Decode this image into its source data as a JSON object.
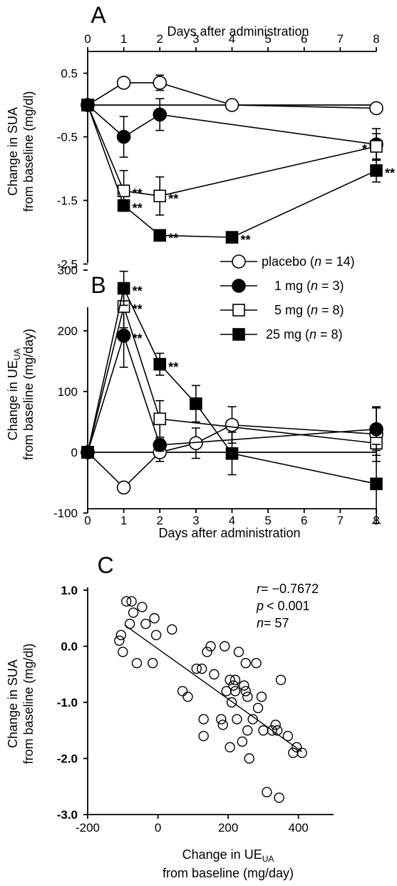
{
  "chart_data": [
    {
      "panel_label": "A",
      "type": "line",
      "xlabel": "Days after administration",
      "ylabel_lines": [
        "Change in SUA",
        "from baseline (mg/dl)"
      ],
      "x_ticks": [
        0,
        1,
        2,
        3,
        4,
        5,
        6,
        7,
        8
      ],
      "y_ticks": [
        0.5,
        -0.5,
        -1.5,
        -2.5
      ],
      "ylim": [
        -2.5,
        0.7
      ],
      "baseline_at_zero": true,
      "series": [
        {
          "key": "placebo",
          "marker": "open-circle",
          "x": [
            0,
            1,
            2,
            4,
            8
          ],
          "y": [
            0,
            0.35,
            0.35,
            0,
            -0.05
          ],
          "err": [
            0,
            0.08,
            0.12,
            0,
            0.08
          ],
          "sig": []
        },
        {
          "key": "1mg",
          "marker": "filled-circle",
          "x": [
            0,
            1,
            2,
            8
          ],
          "y": [
            0,
            -0.5,
            -0.15,
            -0.62
          ],
          "err": [
            0,
            0.32,
            0.25,
            0.25
          ],
          "sig": []
        },
        {
          "key": "5mg",
          "marker": "open-square",
          "x": [
            0,
            1,
            2,
            8
          ],
          "y": [
            0,
            -1.35,
            -1.43,
            -0.65
          ],
          "err": [
            0,
            0.32,
            0.3,
            0.2
          ],
          "sig": [
            {
              "x": 1,
              "text": "**"
            },
            {
              "x": 2,
              "text": "**"
            },
            {
              "x": 8,
              "text": "*",
              "side": "left"
            }
          ]
        },
        {
          "key": "25mg",
          "marker": "filled-square",
          "x": [
            0,
            1,
            2,
            4,
            8
          ],
          "y": [
            0,
            -1.58,
            -2.05,
            -2.08,
            -1.03
          ],
          "err": [
            0,
            0.07,
            0.07,
            0.07,
            0.18
          ],
          "sig": [
            {
              "x": 1,
              "text": "**"
            },
            {
              "x": 2,
              "text": "**"
            },
            {
              "x": 4,
              "text": "**"
            },
            {
              "x": 8,
              "text": "**"
            }
          ]
        }
      ]
    },
    {
      "panel_label": "B",
      "type": "line",
      "xlabel": "Days after administration",
      "ylabel_line1": "Change in UE",
      "ylabel_sub": "UA",
      "ylabel_line2": "from baseline (mg/day)",
      "x_ticks": [
        0,
        1,
        2,
        3,
        4,
        5,
        6,
        7,
        8
      ],
      "y_ticks": [
        300,
        200,
        100,
        0,
        -100
      ],
      "ylim": [
        -115,
        320
      ],
      "baseline_at_zero": true,
      "series": [
        {
          "key": "placebo",
          "marker": "open-circle",
          "x": [
            0,
            1,
            2,
            3,
            4,
            8
          ],
          "y": [
            0,
            -58,
            0,
            15,
            45,
            30
          ],
          "err": [
            0,
            8,
            15,
            25,
            30,
            45
          ],
          "sig": []
        },
        {
          "key": "1mg",
          "marker": "filled-circle",
          "x": [
            0,
            1,
            2,
            8
          ],
          "y": [
            0,
            192,
            12,
            38
          ],
          "err": [
            0,
            52,
            10,
            35
          ],
          "sig": [
            {
              "x": 1,
              "text": "**"
            }
          ]
        },
        {
          "key": "5mg",
          "marker": "open-square",
          "x": [
            0,
            1,
            2,
            8
          ],
          "y": [
            0,
            240,
            55,
            15
          ],
          "err": [
            0,
            35,
            30,
            20
          ],
          "sig": [
            {
              "x": 1,
              "text": "**"
            }
          ]
        },
        {
          "key": "25mg",
          "marker": "filled-square",
          "x": [
            0,
            1,
            2,
            3,
            4,
            8
          ],
          "y": [
            0,
            270,
            145,
            80,
            -2,
            -52
          ],
          "err": [
            0,
            28,
            18,
            30,
            35,
            65
          ],
          "sig": [
            {
              "x": 1,
              "text": "**"
            },
            {
              "x": 2,
              "text": "**"
            }
          ]
        }
      ]
    },
    {
      "panel_label": "C",
      "type": "scatter",
      "xlabel_line1": "Change in UE",
      "xlabel_sub": "UA",
      "xlabel_line2": "from baseline (mg/day)",
      "ylabel_lines": [
        "Change in SUA",
        "from baseline (mg/dl)"
      ],
      "x_ticks": [
        -200,
        0,
        200,
        400
      ],
      "y_ticks": [
        1.0,
        0.0,
        -1.0,
        -2.0,
        -3.0
      ],
      "y_tick_labels": [
        "1.0",
        "0.0",
        "-1.0",
        "-2.0",
        "-3.0"
      ],
      "xlim": [
        -200,
        500
      ],
      "ylim": [
        -3.0,
        1.0
      ],
      "stats": {
        "r": "= −0.7672",
        "p": "< 0.001",
        "n": "= 57"
      },
      "fit_line": {
        "x": [
          -95,
          410
        ],
        "y": [
          0.38,
          -1.88
        ]
      },
      "points": [
        [
          -105,
          0.2
        ],
        [
          -110,
          0.1
        ],
        [
          -100,
          -0.1
        ],
        [
          -90,
          0.8
        ],
        [
          -75,
          0.8
        ],
        [
          -80,
          0.4
        ],
        [
          -70,
          0.6
        ],
        [
          -60,
          -0.3
        ],
        [
          -45,
          0.7
        ],
        [
          -35,
          0.4
        ],
        [
          -15,
          -0.3
        ],
        [
          -10,
          0.5
        ],
        [
          -5,
          0.2
        ],
        [
          40,
          0.3
        ],
        [
          70,
          -0.8
        ],
        [
          85,
          -0.9
        ],
        [
          110,
          -0.4
        ],
        [
          125,
          -0.4
        ],
        [
          130,
          -1.3
        ],
        [
          140,
          -0.1
        ],
        [
          150,
          0.0
        ],
        [
          130,
          -1.6
        ],
        [
          160,
          -0.5
        ],
        [
          180,
          -1.3
        ],
        [
          185,
          -1.4
        ],
        [
          190,
          0.0
        ],
        [
          195,
          -0.8
        ],
        [
          205,
          -0.6
        ],
        [
          210,
          -1.0
        ],
        [
          205,
          -1.8
        ],
        [
          220,
          -0.6
        ],
        [
          220,
          -0.8
        ],
        [
          225,
          -1.3
        ],
        [
          230,
          -0.1
        ],
        [
          240,
          -1.7
        ],
        [
          245,
          -0.7
        ],
        [
          250,
          -0.8
        ],
        [
          250,
          -0.3
        ],
        [
          255,
          -0.9
        ],
        [
          255,
          -1.5
        ],
        [
          260,
          -2.0
        ],
        [
          270,
          -1.3
        ],
        [
          280,
          -0.3
        ],
        [
          285,
          -1.1
        ],
        [
          295,
          -0.9
        ],
        [
          300,
          -1.5
        ],
        [
          310,
          -2.6
        ],
        [
          325,
          -1.5
        ],
        [
          335,
          -1.4
        ],
        [
          340,
          -1.5
        ],
        [
          350,
          -0.6
        ],
        [
          345,
          -2.7
        ],
        [
          370,
          -1.6
        ],
        [
          385,
          -1.9
        ],
        [
          395,
          -1.8
        ],
        [
          410,
          -1.9
        ],
        [
          215,
          -0.7
        ]
      ]
    }
  ],
  "legend": [
    {
      "key": "placebo",
      "marker": "open-circle",
      "label": "placebo (",
      "n_label": "n",
      "count": " = 14)"
    },
    {
      "key": "1mg",
      "marker": "filled-circle",
      "label": "1 mg (",
      "n_label": "n",
      "count": " = 3)"
    },
    {
      "key": "5mg",
      "marker": "open-square",
      "label": "5 mg (",
      "n_label": "n",
      "count": " = 8)"
    },
    {
      "key": "25mg",
      "marker": "filled-square",
      "label": "25 mg (",
      "n_label": "n",
      "count": " = 8)"
    }
  ]
}
